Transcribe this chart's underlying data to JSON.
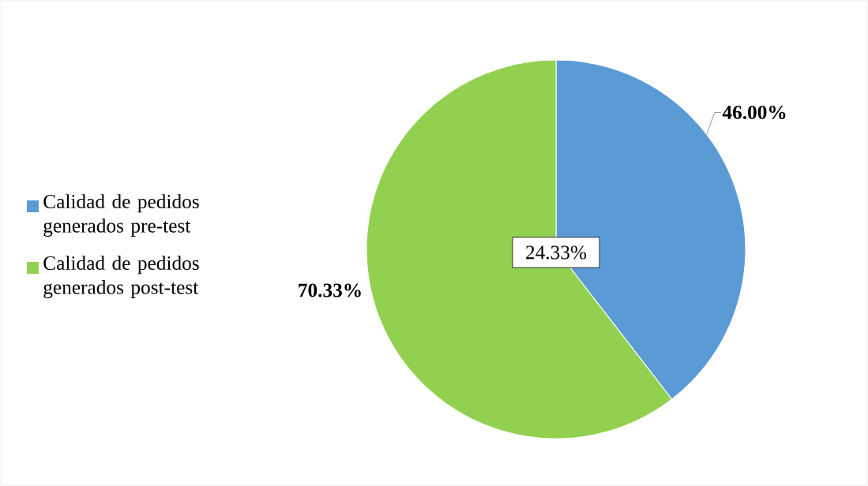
{
  "chart_data": {
    "type": "pie",
    "categories": [
      "Calidad de pedidos generados pre-test",
      "Calidad de pedidos generados post-test"
    ],
    "values": [
      46.0,
      70.33
    ],
    "colors": [
      "#5b9bd5",
      "#92d050"
    ],
    "value_labels": [
      "46.00%",
      "70.33%"
    ],
    "annotations": [
      "24.33%"
    ],
    "legend": "left"
  }
}
